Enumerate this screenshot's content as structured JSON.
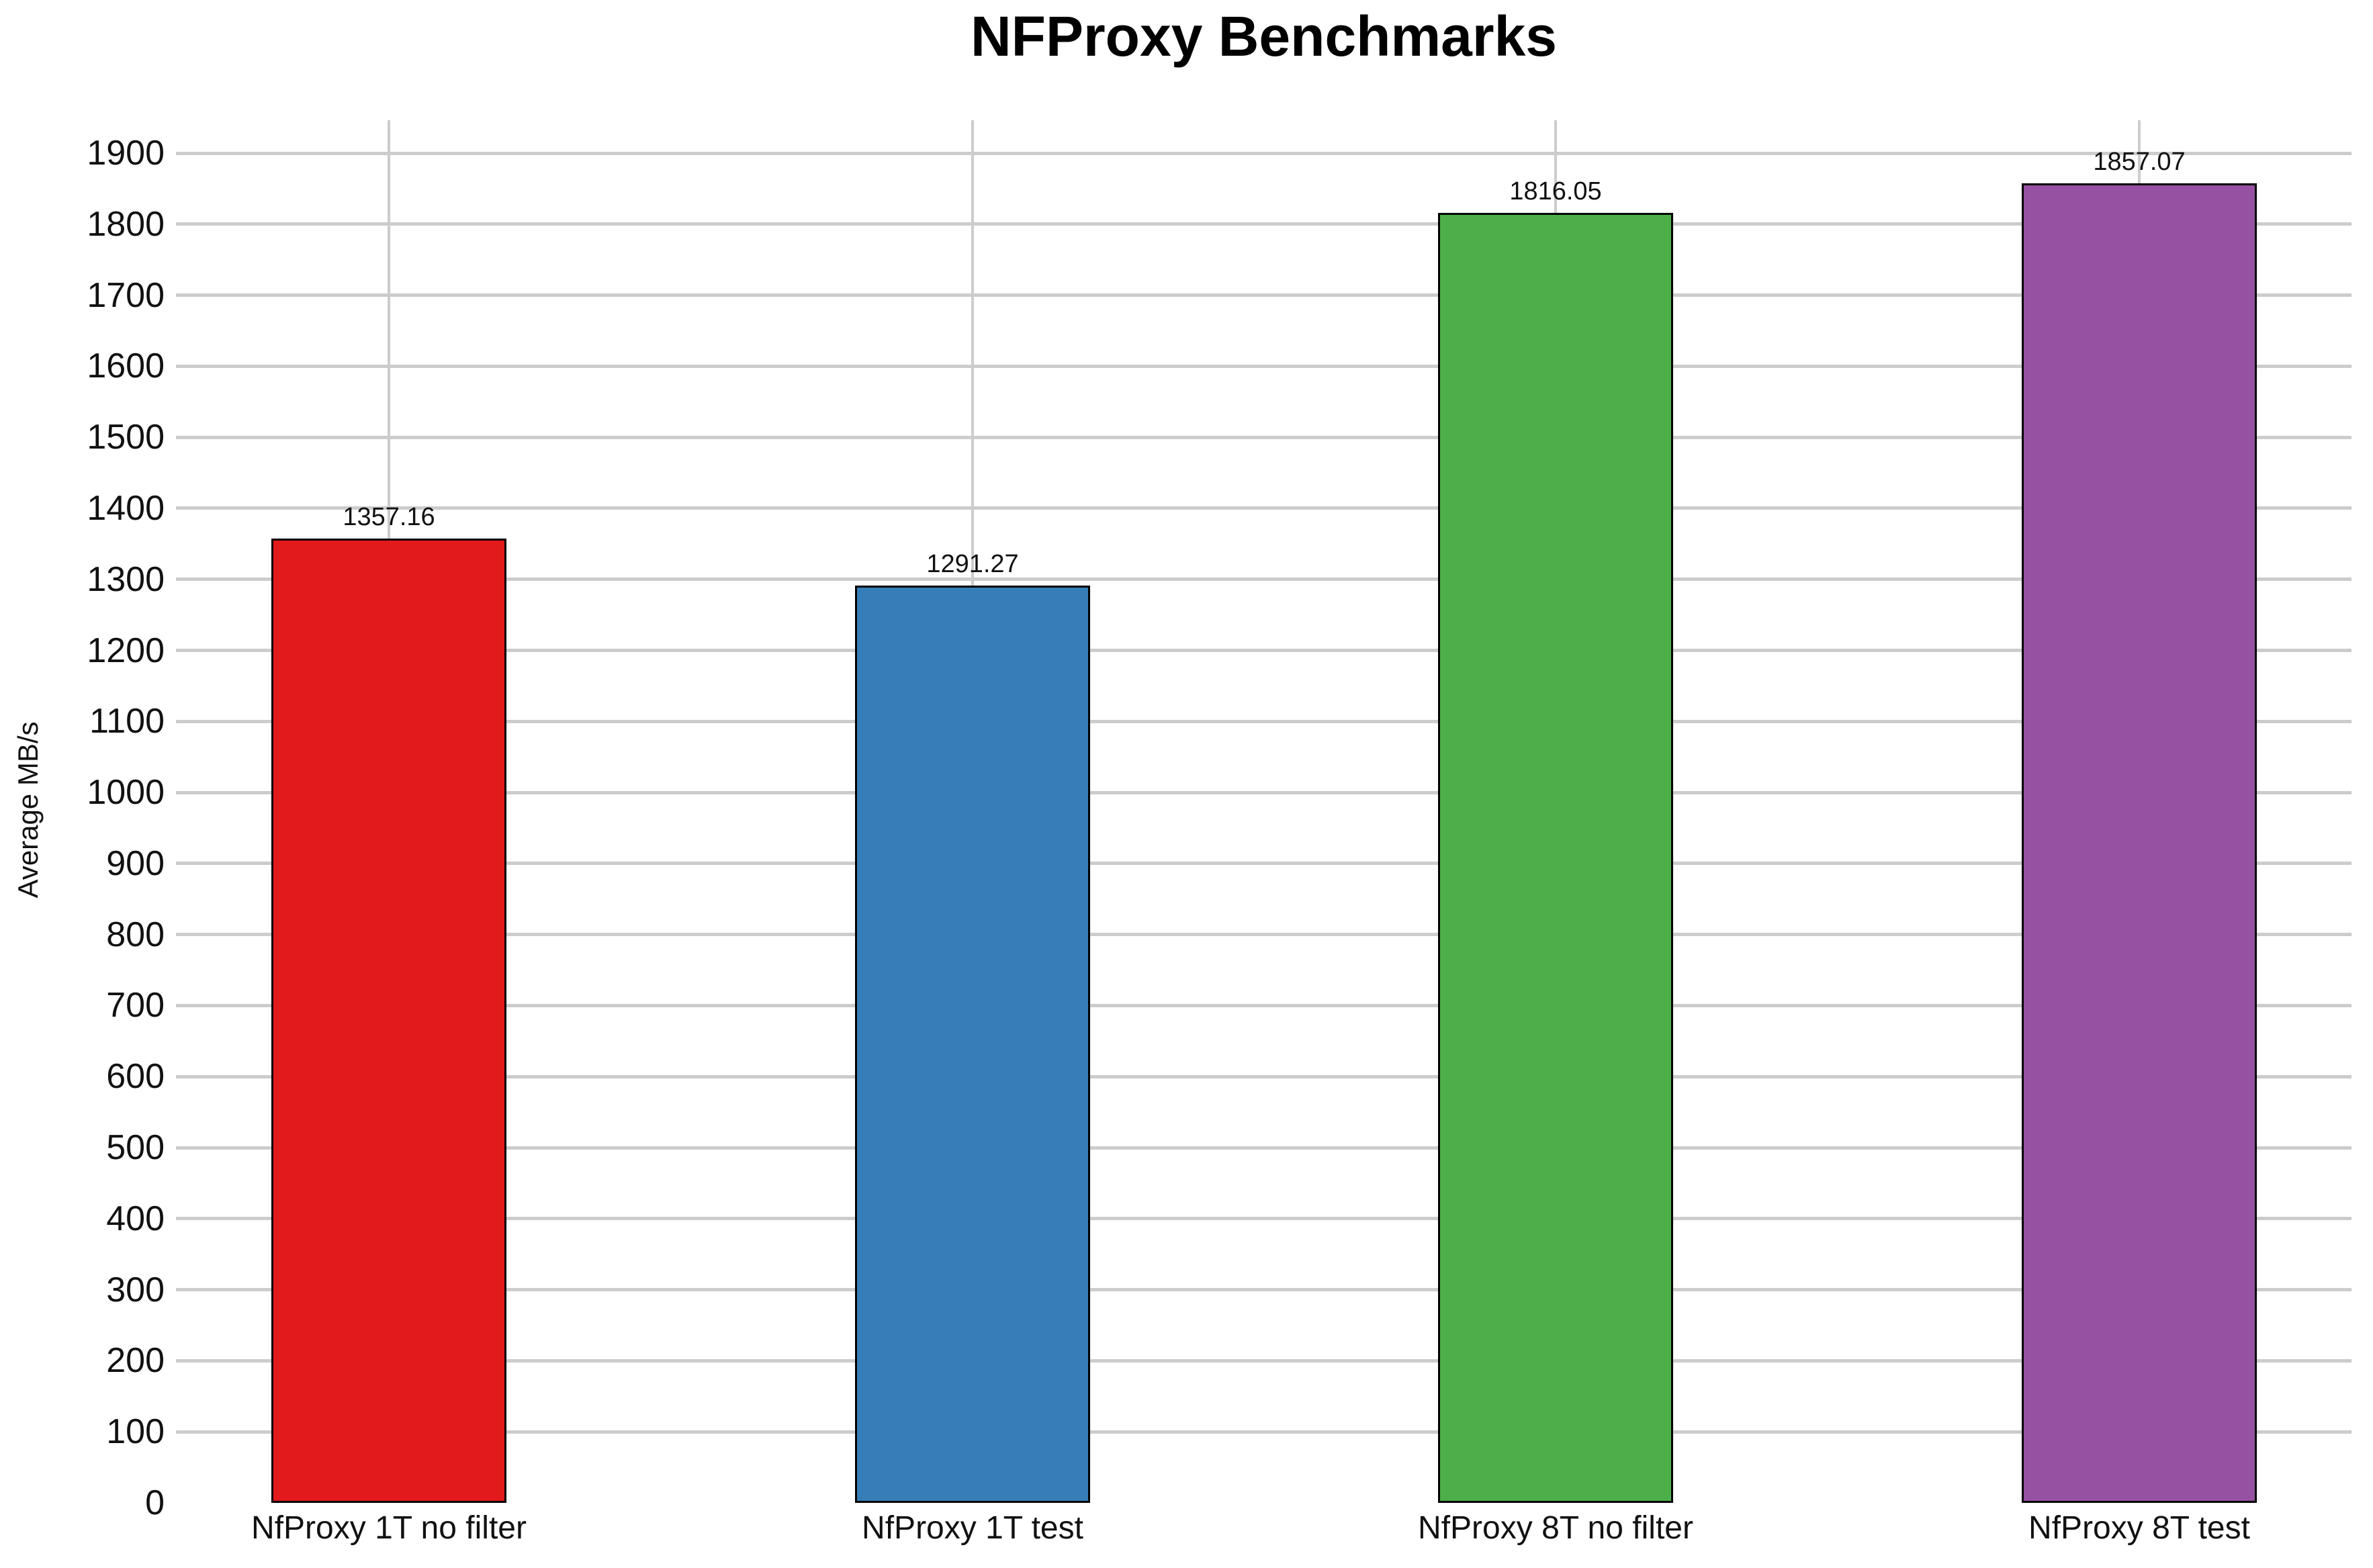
{
  "title": "NFProxy Benchmarks",
  "chart_data": {
    "type": "bar",
    "title": "NFProxy Benchmarks",
    "xlabel": "",
    "ylabel": "Average MB/s",
    "categories": [
      "NfProxy 1T no filter",
      "NfProxy 1T test",
      "NfProxy 8T no filter",
      "NfProxy 8T test"
    ],
    "values": [
      1357.16,
      1291.27,
      1816.05,
      1857.07
    ],
    "value_labels": [
      "1357.16",
      "1291.27",
      "1816.05",
      "1857.07"
    ],
    "bar_colors": [
      "#e31a1c",
      "#377eb8",
      "#4daf4a",
      "#9751a3"
    ],
    "bar_edge_color": "#000000",
    "ylim": [
      0,
      1946
    ],
    "yticks": [
      0,
      100,
      200,
      300,
      400,
      500,
      600,
      700,
      800,
      900,
      1000,
      1100,
      1200,
      1300,
      1400,
      1500,
      1600,
      1700,
      1800,
      1900
    ],
    "grid": true,
    "gridline_color": "#cccccc",
    "legend_position": "none",
    "text_color": "#111111"
  }
}
